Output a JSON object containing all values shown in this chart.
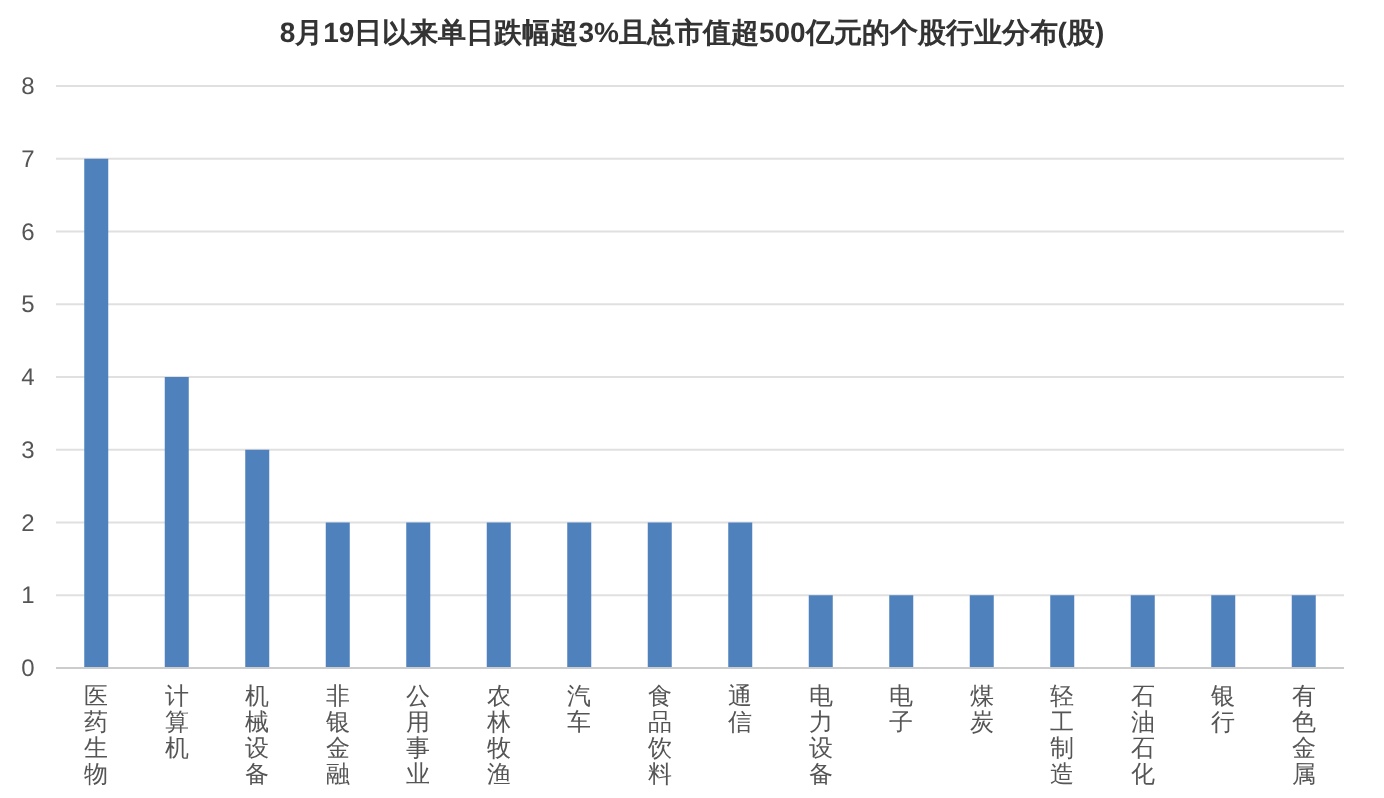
{
  "chart_data": {
    "type": "bar",
    "title": "8月19日以来单日跌幅超3%且总市值超500亿元的个股行业分布(股)",
    "categories": [
      "医药生物",
      "计算机",
      "机械设备",
      "非银金融",
      "公用事业",
      "农林牧渔",
      "汽车",
      "食品饮料",
      "通信",
      "电力设备",
      "电子",
      "煤炭",
      "轻工制造",
      "石油石化",
      "银行",
      "有色金属"
    ],
    "values": [
      7,
      4,
      3,
      2,
      2,
      2,
      2,
      2,
      2,
      1,
      1,
      1,
      1,
      1,
      1,
      1
    ],
    "color": "#4f81bd",
    "ylim": [
      0,
      8
    ],
    "yticks": [
      0,
      1,
      2,
      3,
      4,
      5,
      6,
      7,
      8
    ],
    "grid": "y"
  }
}
